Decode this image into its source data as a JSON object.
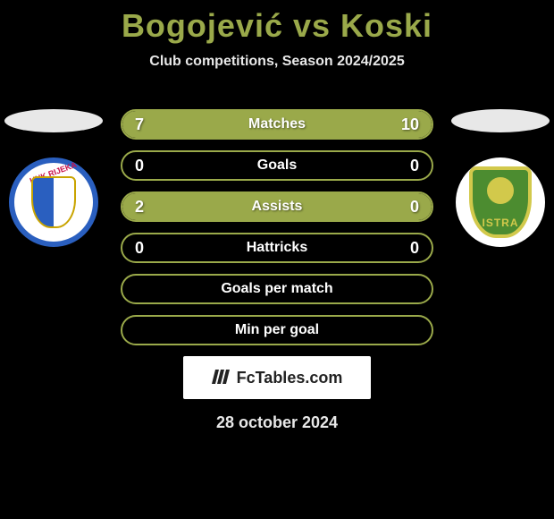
{
  "title": "Bogojević vs Koski",
  "subtitle": "Club competitions, Season 2024/2025",
  "colors": {
    "accent": "#9aa94a",
    "background": "#000000",
    "text": "#ffffff",
    "arm_bg": "#e8e8e8",
    "brand_bg": "#ffffff",
    "brand_text": "#222222"
  },
  "rows": [
    {
      "label": "Matches",
      "left": "7",
      "right": "10",
      "left_pct": 41,
      "right_pct": 59,
      "show_values": true,
      "full_fill": false
    },
    {
      "label": "Goals",
      "left": "0",
      "right": "0",
      "left_pct": 0,
      "right_pct": 0,
      "show_values": true,
      "full_fill": false
    },
    {
      "label": "Assists",
      "left": "2",
      "right": "0",
      "left_pct": 100,
      "right_pct": 0,
      "show_values": true,
      "full_fill": true
    },
    {
      "label": "Hattricks",
      "left": "0",
      "right": "0",
      "left_pct": 0,
      "right_pct": 0,
      "show_values": true,
      "full_fill": false
    },
    {
      "label": "Goals per match",
      "left": "",
      "right": "",
      "left_pct": 0,
      "right_pct": 0,
      "show_values": false,
      "full_fill": false
    },
    {
      "label": "Min per goal",
      "left": "",
      "right": "",
      "left_pct": 0,
      "right_pct": 0,
      "show_values": false,
      "full_fill": false
    }
  ],
  "row_style": {
    "height": 34,
    "border_radius": 18,
    "border_width": 2,
    "gap": 12,
    "label_fontsize": 16,
    "value_fontsize": 18
  },
  "badges": {
    "left": {
      "name": "HNK RIJEKA",
      "ring": "#2a5fbf",
      "shield_left": "#2a5fbf",
      "shield_right": "#ffffff",
      "shield_border": "#c9a400",
      "label_color": "#c9124a"
    },
    "right": {
      "name": "ISTRA",
      "bg": "#ffffff",
      "shield": "#4c8c30",
      "shield_border": "#d2c94b",
      "ball": "#d2c94b",
      "text_color": "#d2c94b"
    }
  },
  "brand": "FcTables.com",
  "date": "28 october 2024"
}
